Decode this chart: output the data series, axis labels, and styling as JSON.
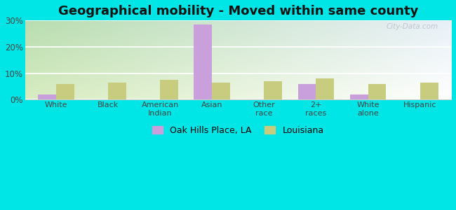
{
  "title": "Geographical mobility - Moved within same county",
  "categories": [
    "White",
    "Black",
    "American\nIndian",
    "Asian",
    "Other\nrace",
    "2+\nraces",
    "White\nalone",
    "Hispanic"
  ],
  "oak_hills": [
    2.0,
    0.2,
    0.0,
    28.5,
    0.0,
    6.0,
    2.0,
    0.0
  ],
  "louisiana": [
    6.0,
    6.5,
    7.5,
    6.5,
    7.0,
    8.0,
    6.0,
    6.5
  ],
  "oak_hills_color": "#c9a0dc",
  "louisiana_color": "#c8cc7f",
  "background_outer": "#00e5e5",
  "background_inner_topleft": "#b8ddb0",
  "background_inner_topright": "#e8f0f8",
  "background_inner_bottomleft": "#d8ecc0",
  "background_inner_bottomright": "#ffffff",
  "ylim": [
    0,
    30
  ],
  "yticks": [
    0,
    10,
    20,
    30
  ],
  "ytick_labels": [
    "0%",
    "10%",
    "20%",
    "30%"
  ],
  "legend_label_1": "Oak Hills Place, LA",
  "legend_label_2": "Louisiana",
  "bar_width": 0.35,
  "title_fontsize": 13,
  "watermark": "City-Data.com"
}
